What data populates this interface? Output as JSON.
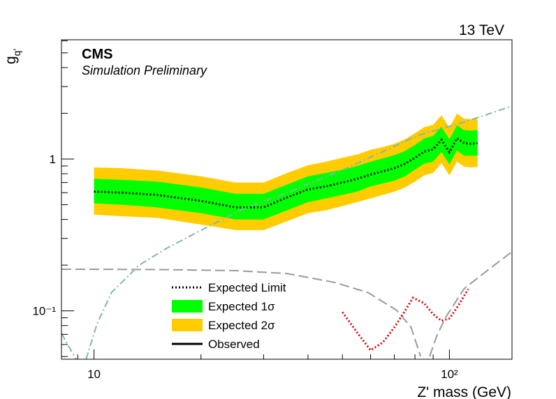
{
  "chart_data": {
    "type": "line",
    "experiment": "CMS",
    "subtitle": "Simulation Preliminary",
    "energy": "13 TeV",
    "x_label": "Z' mass (GeV)",
    "y_label": "g",
    "y_label_sub": "q'",
    "log_x": true,
    "log_y": true,
    "xlim": [
      8.1,
      150
    ],
    "ylim": [
      0.048,
      6.1
    ],
    "xticks": [
      10,
      {
        "value": 100,
        "label": "10²"
      }
    ],
    "yticks": [
      {
        "value": 0.1,
        "label": "10⁻¹"
      },
      1
    ],
    "minor_xticks": [
      9,
      20,
      30,
      40,
      50,
      60,
      70,
      80,
      90
    ],
    "minor_yticks": [
      0.05,
      0.06,
      0.07,
      0.08,
      0.09,
      0.2,
      0.3,
      0.4,
      0.5,
      0.6,
      0.7,
      0.8,
      0.9,
      2,
      3,
      4,
      5,
      6
    ],
    "series": [
      {
        "name": "Expected Limit",
        "style": "line",
        "color": "#000000",
        "dash": "dotted",
        "x": [
          10,
          12,
          15,
          20,
          25,
          30,
          35,
          40,
          45,
          50,
          55,
          60,
          65,
          70,
          75,
          80,
          85,
          90,
          95,
          100,
          105,
          110,
          115,
          120
        ],
        "values": [
          0.61,
          0.6,
          0.58,
          0.53,
          0.48,
          0.48,
          0.56,
          0.63,
          0.66,
          0.7,
          0.74,
          0.79,
          0.83,
          0.87,
          0.93,
          1.02,
          1.12,
          1.16,
          1.34,
          1.11,
          1.37,
          1.27,
          1.26,
          1.27
        ]
      },
      {
        "name": "Expected 1σ",
        "style": "band",
        "color": "#00ff00",
        "x": [
          10,
          12,
          15,
          20,
          25,
          30,
          35,
          40,
          45,
          50,
          55,
          60,
          65,
          70,
          75,
          80,
          85,
          90,
          95,
          100,
          105,
          110,
          115,
          120
        ],
        "high": [
          0.74,
          0.73,
          0.71,
          0.65,
          0.59,
          0.59,
          0.68,
          0.77,
          0.81,
          0.85,
          0.9,
          0.96,
          1.01,
          1.06,
          1.13,
          1.24,
          1.37,
          1.42,
          1.63,
          1.35,
          1.67,
          1.55,
          1.54,
          1.55
        ],
        "low": [
          0.51,
          0.5,
          0.48,
          0.44,
          0.4,
          0.4,
          0.46,
          0.52,
          0.55,
          0.58,
          0.61,
          0.66,
          0.69,
          0.72,
          0.77,
          0.85,
          0.93,
          0.96,
          1.11,
          0.92,
          1.14,
          1.05,
          1.05,
          1.05
        ]
      },
      {
        "name": "Expected 2σ",
        "style": "band",
        "color": "#ffcc00",
        "x": [
          10,
          12,
          15,
          20,
          25,
          30,
          35,
          40,
          45,
          50,
          55,
          60,
          65,
          70,
          75,
          80,
          85,
          90,
          95,
          100,
          105,
          110,
          115,
          120
        ],
        "high": [
          0.88,
          0.87,
          0.84,
          0.77,
          0.7,
          0.7,
          0.81,
          0.91,
          0.96,
          1.02,
          1.07,
          1.15,
          1.2,
          1.26,
          1.35,
          1.48,
          1.62,
          1.68,
          1.94,
          1.61,
          1.99,
          1.84,
          1.83,
          1.84
        ],
        "low": [
          0.43,
          0.42,
          0.41,
          0.37,
          0.34,
          0.34,
          0.39,
          0.44,
          0.46,
          0.49,
          0.52,
          0.55,
          0.58,
          0.61,
          0.65,
          0.71,
          0.78,
          0.81,
          0.94,
          0.78,
          0.96,
          0.89,
          0.88,
          0.89
        ]
      },
      {
        "name": "Observed",
        "style": "line",
        "color": "#000000",
        "dash": "solid",
        "x": [],
        "values": []
      },
      {
        "style": "line",
        "color": "#999999",
        "dash": "dashed",
        "x": [
          8.1,
          15,
          25,
          35,
          47.5,
          59,
          71,
          78,
          83,
          85,
          88,
          92,
          98,
          110,
          130,
          150
        ],
        "values": [
          0.188,
          0.187,
          0.184,
          0.176,
          0.154,
          0.132,
          0.101,
          0.078,
          0.05,
          null,
          0.05,
          0.068,
          0.092,
          0.14,
          0.19,
          0.245
        ]
      },
      {
        "style": "line",
        "color": "#80b8a8",
        "dash": "dashdot",
        "x": [
          8.1,
          8.5,
          8.9,
          9.2,
          9.5,
          10.2,
          11.2,
          13.4,
          16.1,
          21,
          26.4,
          35,
          52,
          81,
          110,
          150
        ],
        "values": [
          0.071,
          0.058,
          0.048,
          null,
          0.048,
          0.082,
          0.132,
          0.2,
          0.26,
          0.36,
          0.47,
          0.6,
          0.88,
          1.42,
          1.75,
          2.23
        ]
      },
      {
        "style": "line",
        "color": "#dd0000",
        "dash": "dotted",
        "x": [
          50,
          55,
          60,
          65,
          70,
          75,
          79,
          85,
          90,
          95,
          100,
          105,
          113
        ],
        "values": [
          0.098,
          0.072,
          0.055,
          0.062,
          0.078,
          0.1,
          0.122,
          0.112,
          0.095,
          0.086,
          0.089,
          0.105,
          0.139
        ]
      }
    ]
  }
}
